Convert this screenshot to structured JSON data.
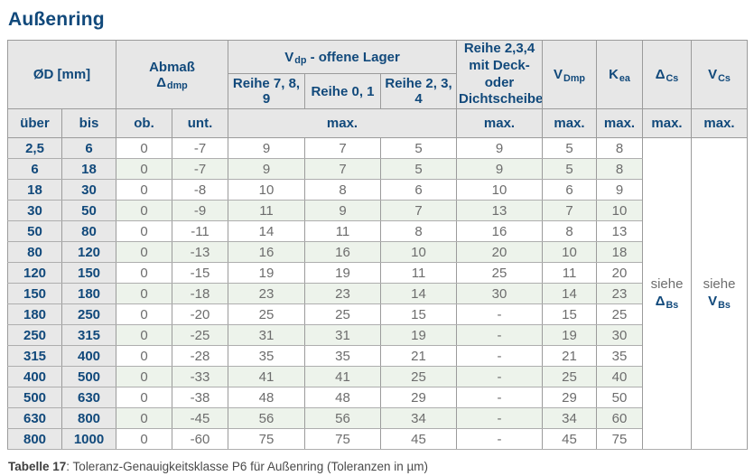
{
  "page": {
    "title": "Außenring"
  },
  "colors": {
    "accent_blue": "#11497b",
    "stripe_green": "#edf3eb",
    "header_gray": "#e7e7e7",
    "value_gray": "#6d6d6d"
  },
  "table": {
    "header": {
      "diameter": "ØD  [mm]",
      "abmass_line1": "Abmaß",
      "abmass_sym": {
        "base": "Δ",
        "sub": "dmp"
      },
      "vdp": {
        "base": "V",
        "sub": "dp",
        "rest": " -  offene Lager"
      },
      "reihe789": "Reihe 7, 8, 9",
      "reihe01": "Reihe 0, 1",
      "reihe234": "Reihe 2, 3, 4",
      "sealed_lines": [
        "Reihe 2,3,4",
        "mit Deck- oder",
        "Dichtscheiben"
      ],
      "vdmp": {
        "base": "V",
        "sub": "Dmp"
      },
      "kea": {
        "base": "K",
        "sub": "ea"
      },
      "dcs": {
        "base": "Δ",
        "sub": "Cs"
      },
      "vcs": {
        "base": "V",
        "sub": "Cs"
      },
      "ueber": "über",
      "bis": "bis",
      "ob": "ob.",
      "unt": "unt.",
      "max": "max."
    },
    "rows": [
      [
        "2,5",
        "6",
        "0",
        "-7",
        "9",
        "7",
        "5",
        "9",
        "5",
        "8"
      ],
      [
        "6",
        "18",
        "0",
        "-7",
        "9",
        "7",
        "5",
        "9",
        "5",
        "8"
      ],
      [
        "18",
        "30",
        "0",
        "-8",
        "10",
        "8",
        "6",
        "10",
        "6",
        "9"
      ],
      [
        "30",
        "50",
        "0",
        "-9",
        "11",
        "9",
        "7",
        "13",
        "7",
        "10"
      ],
      [
        "50",
        "80",
        "0",
        "-11",
        "14",
        "11",
        "8",
        "16",
        "8",
        "13"
      ],
      [
        "80",
        "120",
        "0",
        "-13",
        "16",
        "16",
        "10",
        "20",
        "10",
        "18"
      ],
      [
        "120",
        "150",
        "0",
        "-15",
        "19",
        "19",
        "11",
        "25",
        "11",
        "20"
      ],
      [
        "150",
        "180",
        "0",
        "-18",
        "23",
        "23",
        "14",
        "30",
        "14",
        "23"
      ],
      [
        "180",
        "250",
        "0",
        "-20",
        "25",
        "25",
        "15",
        "-",
        "15",
        "25"
      ],
      [
        "250",
        "315",
        "0",
        "-25",
        "31",
        "31",
        "19",
        "-",
        "19",
        "30"
      ],
      [
        "315",
        "400",
        "0",
        "-28",
        "35",
        "35",
        "21",
        "-",
        "21",
        "35"
      ],
      [
        "400",
        "500",
        "0",
        "-33",
        "41",
        "41",
        "25",
        "-",
        "25",
        "40"
      ],
      [
        "500",
        "630",
        "0",
        "-38",
        "48",
        "48",
        "29",
        "-",
        "29",
        "50"
      ],
      [
        "630",
        "800",
        "0",
        "-45",
        "56",
        "56",
        "34",
        "-",
        "34",
        "60"
      ],
      [
        "800",
        "1000",
        "0",
        "-60",
        "75",
        "75",
        "45",
        "-",
        "45",
        "75"
      ]
    ],
    "see_refs": [
      {
        "text": "siehe",
        "base": "Δ",
        "sub": "Bs"
      },
      {
        "text": "siehe",
        "base": "V",
        "sub": "Bs"
      }
    ]
  },
  "caption": {
    "label": "Tabelle 17",
    "text": ": Toleranz-Genauigkeitsklasse P6 für Außenring (Toleranzen in µm)"
  }
}
